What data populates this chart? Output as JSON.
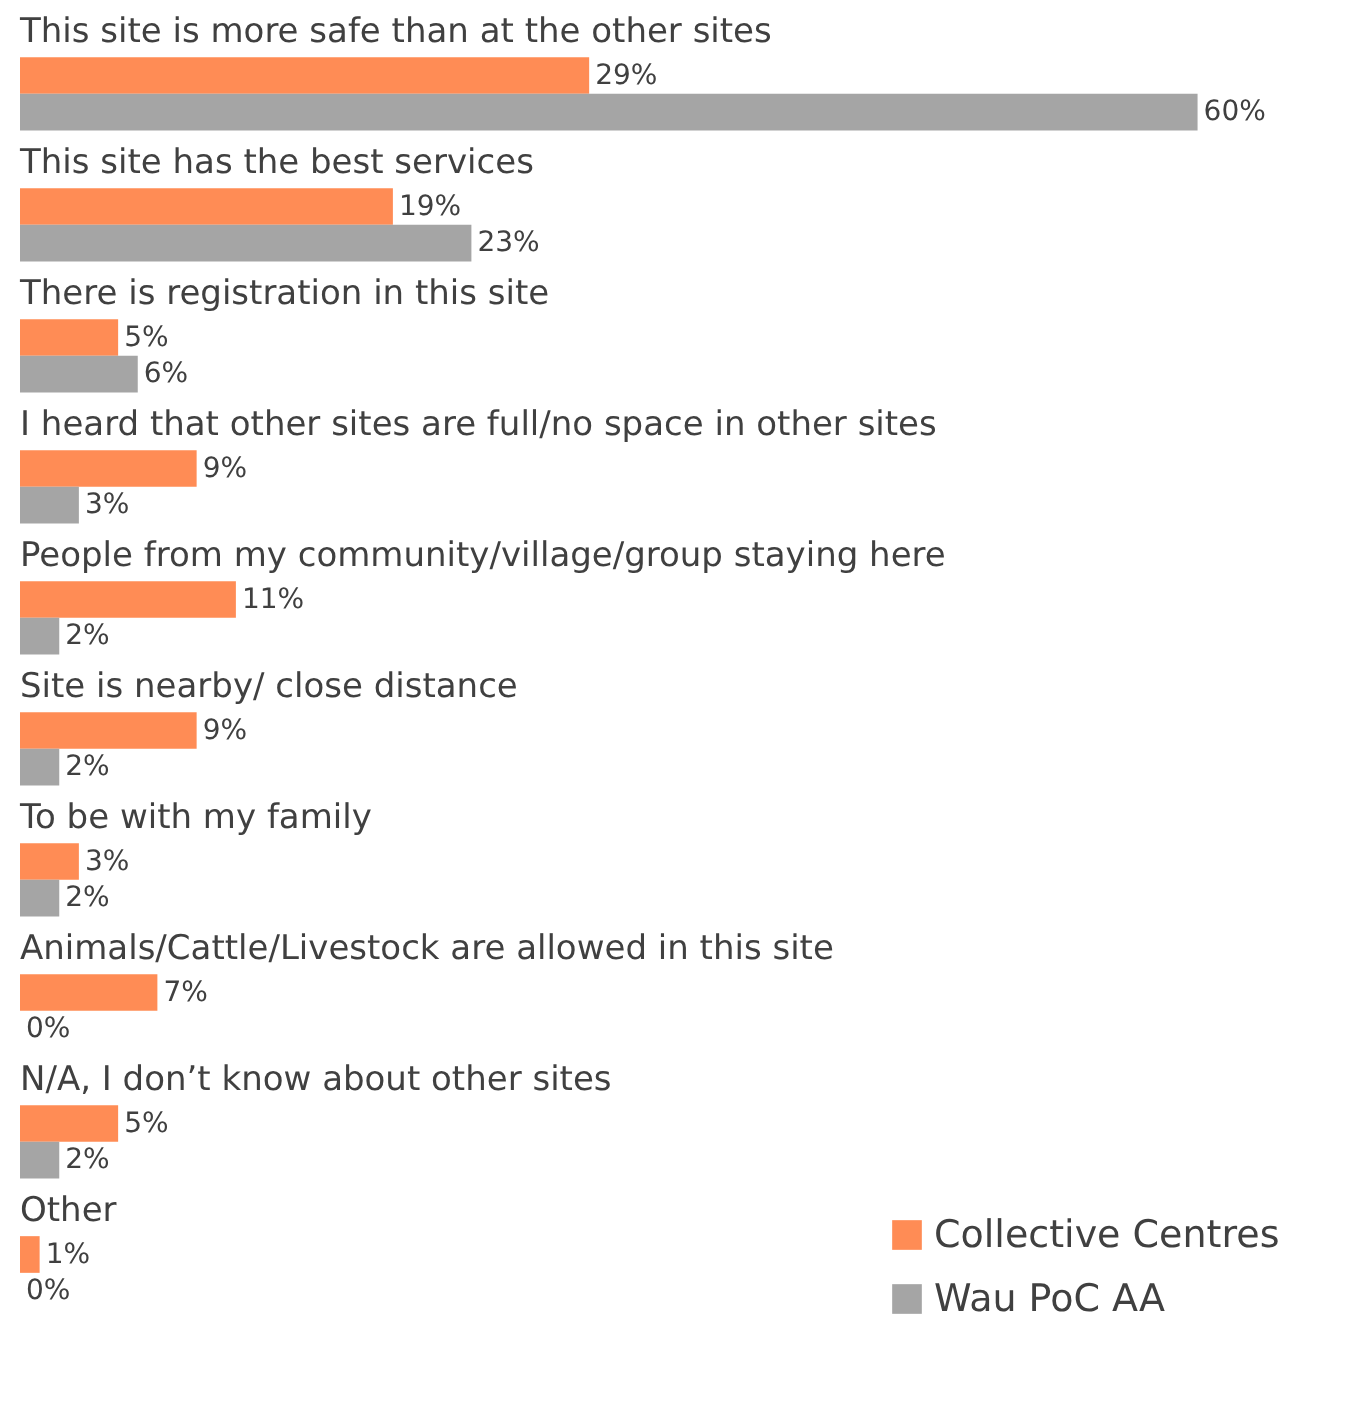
{
  "chart_data": {
    "type": "bar",
    "orientation": "horizontal",
    "legend": "bottom right",
    "categories": [
      "This site is more safe than at the other sites",
      "This site has the best services",
      "There is registration in this site",
      "I heard that other sites are full/no space in other sites",
      "People from my community/village/group staying here",
      "Site is nearby/ close distance",
      "To be with my family",
      "Animals/Cattle/Livestock are allowed in this site",
      "N/A, I don’t know about other sites",
      "Other"
    ],
    "series": [
      {
        "name": "Collective Centres",
        "color": "#ff8c55",
        "values": [
          29,
          19,
          5,
          9,
          11,
          9,
          3,
          7,
          5,
          1
        ],
        "value_labels": [
          "29%",
          "19%",
          "5%",
          "9%",
          "11%",
          "9%",
          "3%",
          "7%",
          "5%",
          "1%"
        ]
      },
      {
        "name": "Wau PoC AA",
        "color": "#a5a5a5",
        "values": [
          60,
          23,
          6,
          3,
          2,
          2,
          2,
          0,
          2,
          0
        ],
        "value_labels": [
          "60%",
          "23%",
          "6%",
          "3%",
          "2%",
          "2%",
          "2%",
          "0%",
          "2%",
          "0%"
        ]
      }
    ]
  }
}
